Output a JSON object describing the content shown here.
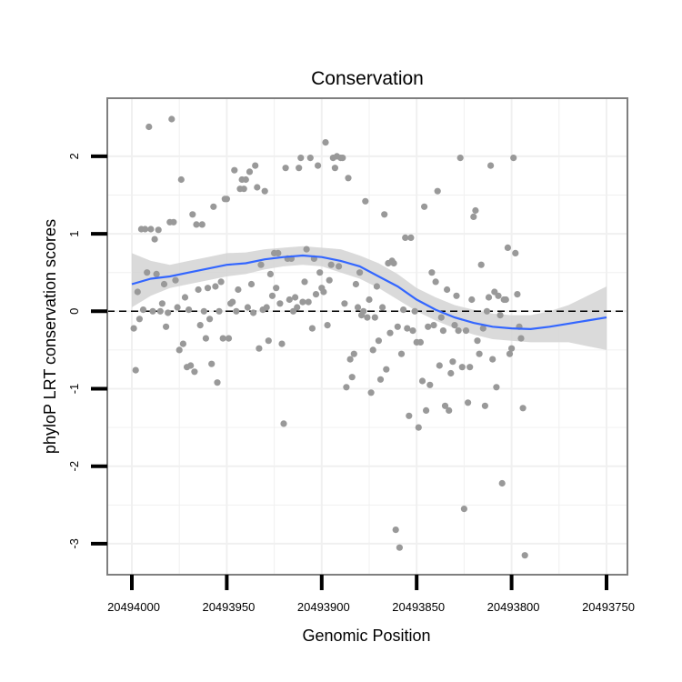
{
  "chart_data": {
    "type": "scatter",
    "title": "Conservation",
    "xlabel": "Genomic Position",
    "ylabel": "phyloP LRT conservation scores",
    "x_reversed": true,
    "xlim": [
      20494000,
      20493750
    ],
    "ylim": [
      -3.4,
      2.75
    ],
    "x_ticks": [
      20494000,
      20493950,
      20493900,
      20493850,
      20493800,
      20493750
    ],
    "x_tick_labels": [
      "20494000",
      "20493950",
      "20493900",
      "20493850",
      "20493800",
      "20493750"
    ],
    "y_ticks": [
      -3,
      -2,
      -1,
      0,
      1,
      2
    ],
    "y_tick_labels": [
      "-3",
      "-2",
      "-1",
      "0",
      "1",
      "2"
    ],
    "reference_line": {
      "y": 0,
      "style": "dashed"
    },
    "grid": true,
    "colors": {
      "points": "#999999",
      "smooth_line": "#3366ff",
      "ribbon": "#d3d3d3",
      "panel_border": "#7f7f7f",
      "grid": "#f0f0f0"
    },
    "series": [
      {
        "type": "scatter",
        "points": [
          [
            20493999,
            -0.22
          ],
          [
            20493998,
            -0.76
          ],
          [
            20493997,
            0.25
          ],
          [
            20493996,
            -0.1
          ],
          [
            20493995,
            1.06
          ],
          [
            20493994,
            0.02
          ],
          [
            20493993,
            1.06
          ],
          [
            20493992,
            0.5
          ],
          [
            20493991,
            2.38
          ],
          [
            20493990,
            1.06
          ],
          [
            20493989,
            0.0
          ],
          [
            20493988,
            0.93
          ],
          [
            20493987,
            0.48
          ],
          [
            20493986,
            1.05
          ],
          [
            20493985,
            0.0
          ],
          [
            20493984,
            0.1
          ],
          [
            20493983,
            0.35
          ],
          [
            20493982,
            -0.2
          ],
          [
            20493981,
            -0.02
          ],
          [
            20493980,
            1.15
          ],
          [
            20493979,
            2.48
          ],
          [
            20493978,
            1.15
          ],
          [
            20493977,
            0.4
          ],
          [
            20493976,
            0.05
          ],
          [
            20493975,
            -0.5
          ],
          [
            20493974,
            1.7
          ],
          [
            20493973,
            -0.42
          ],
          [
            20493972,
            0.18
          ],
          [
            20493971,
            -0.72
          ],
          [
            20493970,
            0.02
          ],
          [
            20493969,
            -0.7
          ],
          [
            20493968,
            1.25
          ],
          [
            20493967,
            -0.78
          ],
          [
            20493966,
            1.12
          ],
          [
            20493965,
            0.28
          ],
          [
            20493964,
            -0.18
          ],
          [
            20493963,
            1.12
          ],
          [
            20493962,
            0.0
          ],
          [
            20493961,
            -0.35
          ],
          [
            20493960,
            0.3
          ],
          [
            20493959,
            -0.1
          ],
          [
            20493958,
            -0.68
          ],
          [
            20493957,
            1.35
          ],
          [
            20493956,
            0.32
          ],
          [
            20493955,
            -0.92
          ],
          [
            20493954,
            0.0
          ],
          [
            20493953,
            0.38
          ],
          [
            20493952,
            -0.35
          ],
          [
            20493951,
            1.45
          ],
          [
            20493950,
            1.45
          ],
          [
            20493949,
            -0.35
          ],
          [
            20493948,
            0.1
          ],
          [
            20493947,
            0.12
          ],
          [
            20493946,
            1.82
          ],
          [
            20493945,
            0.0
          ],
          [
            20493944,
            0.28
          ],
          [
            20493943,
            1.58
          ],
          [
            20493942,
            1.7
          ],
          [
            20493941,
            1.58
          ],
          [
            20493940,
            1.7
          ],
          [
            20493939,
            0.05
          ],
          [
            20493938,
            1.8
          ],
          [
            20493937,
            0.35
          ],
          [
            20493936,
            -0.02
          ],
          [
            20493935,
            1.88
          ],
          [
            20493934,
            1.6
          ],
          [
            20493933,
            -0.48
          ],
          [
            20493932,
            0.6
          ],
          [
            20493931,
            0.02
          ],
          [
            20493930,
            1.55
          ],
          [
            20493929,
            0.05
          ],
          [
            20493928,
            -0.38
          ],
          [
            20493927,
            0.48
          ],
          [
            20493926,
            0.2
          ],
          [
            20493925,
            0.75
          ],
          [
            20493924,
            0.3
          ],
          [
            20493923,
            0.75
          ],
          [
            20493922,
            0.1
          ],
          [
            20493921,
            -0.42
          ],
          [
            20493920,
            -1.45
          ],
          [
            20493919,
            1.85
          ],
          [
            20493918,
            0.68
          ],
          [
            20493917,
            0.15
          ],
          [
            20493916,
            0.68
          ],
          [
            20493915,
            0.0
          ],
          [
            20493914,
            0.18
          ],
          [
            20493913,
            0.05
          ],
          [
            20493912,
            1.85
          ],
          [
            20493911,
            1.98
          ],
          [
            20493910,
            0.12
          ],
          [
            20493909,
            0.38
          ],
          [
            20493908,
            0.8
          ],
          [
            20493907,
            0.12
          ],
          [
            20493906,
            1.98
          ],
          [
            20493905,
            -0.22
          ],
          [
            20493904,
            0.68
          ],
          [
            20493903,
            0.22
          ],
          [
            20493902,
            1.88
          ],
          [
            20493901,
            0.5
          ],
          [
            20493900,
            0.3
          ],
          [
            20493899,
            0.25
          ],
          [
            20493898,
            2.18
          ],
          [
            20493897,
            -0.18
          ],
          [
            20493896,
            0.4
          ],
          [
            20493895,
            0.6
          ],
          [
            20493894,
            1.98
          ],
          [
            20493893,
            1.85
          ],
          [
            20493892,
            2.0
          ],
          [
            20493891,
            0.58
          ],
          [
            20493890,
            1.98
          ],
          [
            20493889,
            1.98
          ],
          [
            20493888,
            0.1
          ],
          [
            20493887,
            -0.98
          ],
          [
            20493886,
            1.72
          ],
          [
            20493885,
            -0.62
          ],
          [
            20493884,
            -0.85
          ],
          [
            20493883,
            -0.55
          ],
          [
            20493882,
            0.35
          ],
          [
            20493881,
            0.05
          ],
          [
            20493880,
            0.5
          ],
          [
            20493879,
            -0.05
          ],
          [
            20493878,
            0.0
          ],
          [
            20493877,
            1.42
          ],
          [
            20493876,
            -0.08
          ],
          [
            20493875,
            0.15
          ],
          [
            20493874,
            -1.05
          ],
          [
            20493873,
            -0.5
          ],
          [
            20493872,
            -0.08
          ],
          [
            20493871,
            0.32
          ],
          [
            20493870,
            -0.38
          ],
          [
            20493869,
            -0.88
          ],
          [
            20493868,
            0.05
          ],
          [
            20493867,
            1.25
          ],
          [
            20493866,
            -0.75
          ],
          [
            20493865,
            0.62
          ],
          [
            20493864,
            -0.28
          ],
          [
            20493863,
            0.65
          ],
          [
            20493862,
            0.62
          ],
          [
            20493861,
            -2.82
          ],
          [
            20493860,
            -0.2
          ],
          [
            20493859,
            -3.05
          ],
          [
            20493858,
            -0.55
          ],
          [
            20493857,
            0.02
          ],
          [
            20493856,
            0.95
          ],
          [
            20493855,
            -0.22
          ],
          [
            20493854,
            -1.35
          ],
          [
            20493853,
            0.95
          ],
          [
            20493852,
            -0.25
          ],
          [
            20493851,
            0.0
          ],
          [
            20493850,
            -0.4
          ],
          [
            20493849,
            -1.5
          ],
          [
            20493848,
            -0.4
          ],
          [
            20493847,
            -0.9
          ],
          [
            20493846,
            1.35
          ],
          [
            20493845,
            -1.28
          ],
          [
            20493844,
            -0.2
          ],
          [
            20493843,
            -0.95
          ],
          [
            20493842,
            0.5
          ],
          [
            20493841,
            -0.18
          ],
          [
            20493840,
            0.38
          ],
          [
            20493839,
            1.55
          ],
          [
            20493838,
            -0.7
          ],
          [
            20493837,
            -0.08
          ],
          [
            20493836,
            -0.25
          ],
          [
            20493835,
            -1.22
          ],
          [
            20493834,
            0.28
          ],
          [
            20493833,
            -1.28
          ],
          [
            20493832,
            -0.8
          ],
          [
            20493831,
            -0.65
          ],
          [
            20493830,
            -0.18
          ],
          [
            20493829,
            0.2
          ],
          [
            20493828,
            -0.25
          ],
          [
            20493827,
            1.98
          ],
          [
            20493826,
            -0.72
          ],
          [
            20493825,
            -2.55
          ],
          [
            20493824,
            -0.25
          ],
          [
            20493823,
            -1.18
          ],
          [
            20493822,
            -0.72
          ],
          [
            20493821,
            0.15
          ],
          [
            20493820,
            1.22
          ],
          [
            20493819,
            1.3
          ],
          [
            20493818,
            -0.38
          ],
          [
            20493817,
            -0.55
          ],
          [
            20493816,
            0.6
          ],
          [
            20493815,
            -0.22
          ],
          [
            20493814,
            -1.22
          ],
          [
            20493813,
            0.0
          ],
          [
            20493812,
            0.18
          ],
          [
            20493811,
            1.88
          ],
          [
            20493810,
            -0.62
          ],
          [
            20493809,
            0.25
          ],
          [
            20493808,
            -0.98
          ],
          [
            20493807,
            0.2
          ],
          [
            20493806,
            -0.05
          ],
          [
            20493805,
            -2.22
          ],
          [
            20493804,
            0.15
          ],
          [
            20493803,
            0.15
          ],
          [
            20493802,
            0.82
          ],
          [
            20493801,
            -0.55
          ],
          [
            20493800,
            -0.48
          ],
          [
            20493799,
            1.98
          ],
          [
            20493798,
            0.75
          ],
          [
            20493797,
            0.22
          ],
          [
            20493796,
            -0.2
          ],
          [
            20493795,
            -0.35
          ],
          [
            20493794,
            -1.25
          ],
          [
            20493793,
            -3.15
          ]
        ]
      },
      {
        "type": "smooth",
        "points": [
          [
            20494000,
            0.35,
            0.05,
            0.75
          ],
          [
            20493990,
            0.42,
            0.2,
            0.65
          ],
          [
            20493980,
            0.45,
            0.3,
            0.6
          ],
          [
            20493970,
            0.5,
            0.35,
            0.65
          ],
          [
            20493960,
            0.55,
            0.4,
            0.7
          ],
          [
            20493950,
            0.6,
            0.45,
            0.75
          ],
          [
            20493940,
            0.62,
            0.48,
            0.76
          ],
          [
            20493930,
            0.67,
            0.54,
            0.8
          ],
          [
            20493920,
            0.7,
            0.58,
            0.82
          ],
          [
            20493910,
            0.72,
            0.6,
            0.84
          ],
          [
            20493900,
            0.7,
            0.58,
            0.82
          ],
          [
            20493890,
            0.65,
            0.5,
            0.8
          ],
          [
            20493880,
            0.58,
            0.42,
            0.72
          ],
          [
            20493870,
            0.45,
            0.3,
            0.62
          ],
          [
            20493860,
            0.32,
            0.15,
            0.48
          ],
          [
            20493850,
            0.15,
            0.0,
            0.3
          ],
          [
            20493840,
            0.02,
            -0.12,
            0.18
          ],
          [
            20493830,
            -0.08,
            -0.22,
            0.08
          ],
          [
            20493820,
            -0.15,
            -0.3,
            0.02
          ],
          [
            20493810,
            -0.2,
            -0.36,
            -0.03
          ],
          [
            20493800,
            -0.22,
            -0.38,
            -0.05
          ],
          [
            20493790,
            -0.23,
            -0.4,
            -0.05
          ],
          [
            20493780,
            -0.2,
            -0.4,
            0.0
          ],
          [
            20493770,
            -0.16,
            -0.4,
            0.08
          ],
          [
            20493760,
            -0.12,
            -0.45,
            0.2
          ],
          [
            20493750,
            -0.08,
            -0.5,
            0.32
          ]
        ]
      }
    ]
  }
}
